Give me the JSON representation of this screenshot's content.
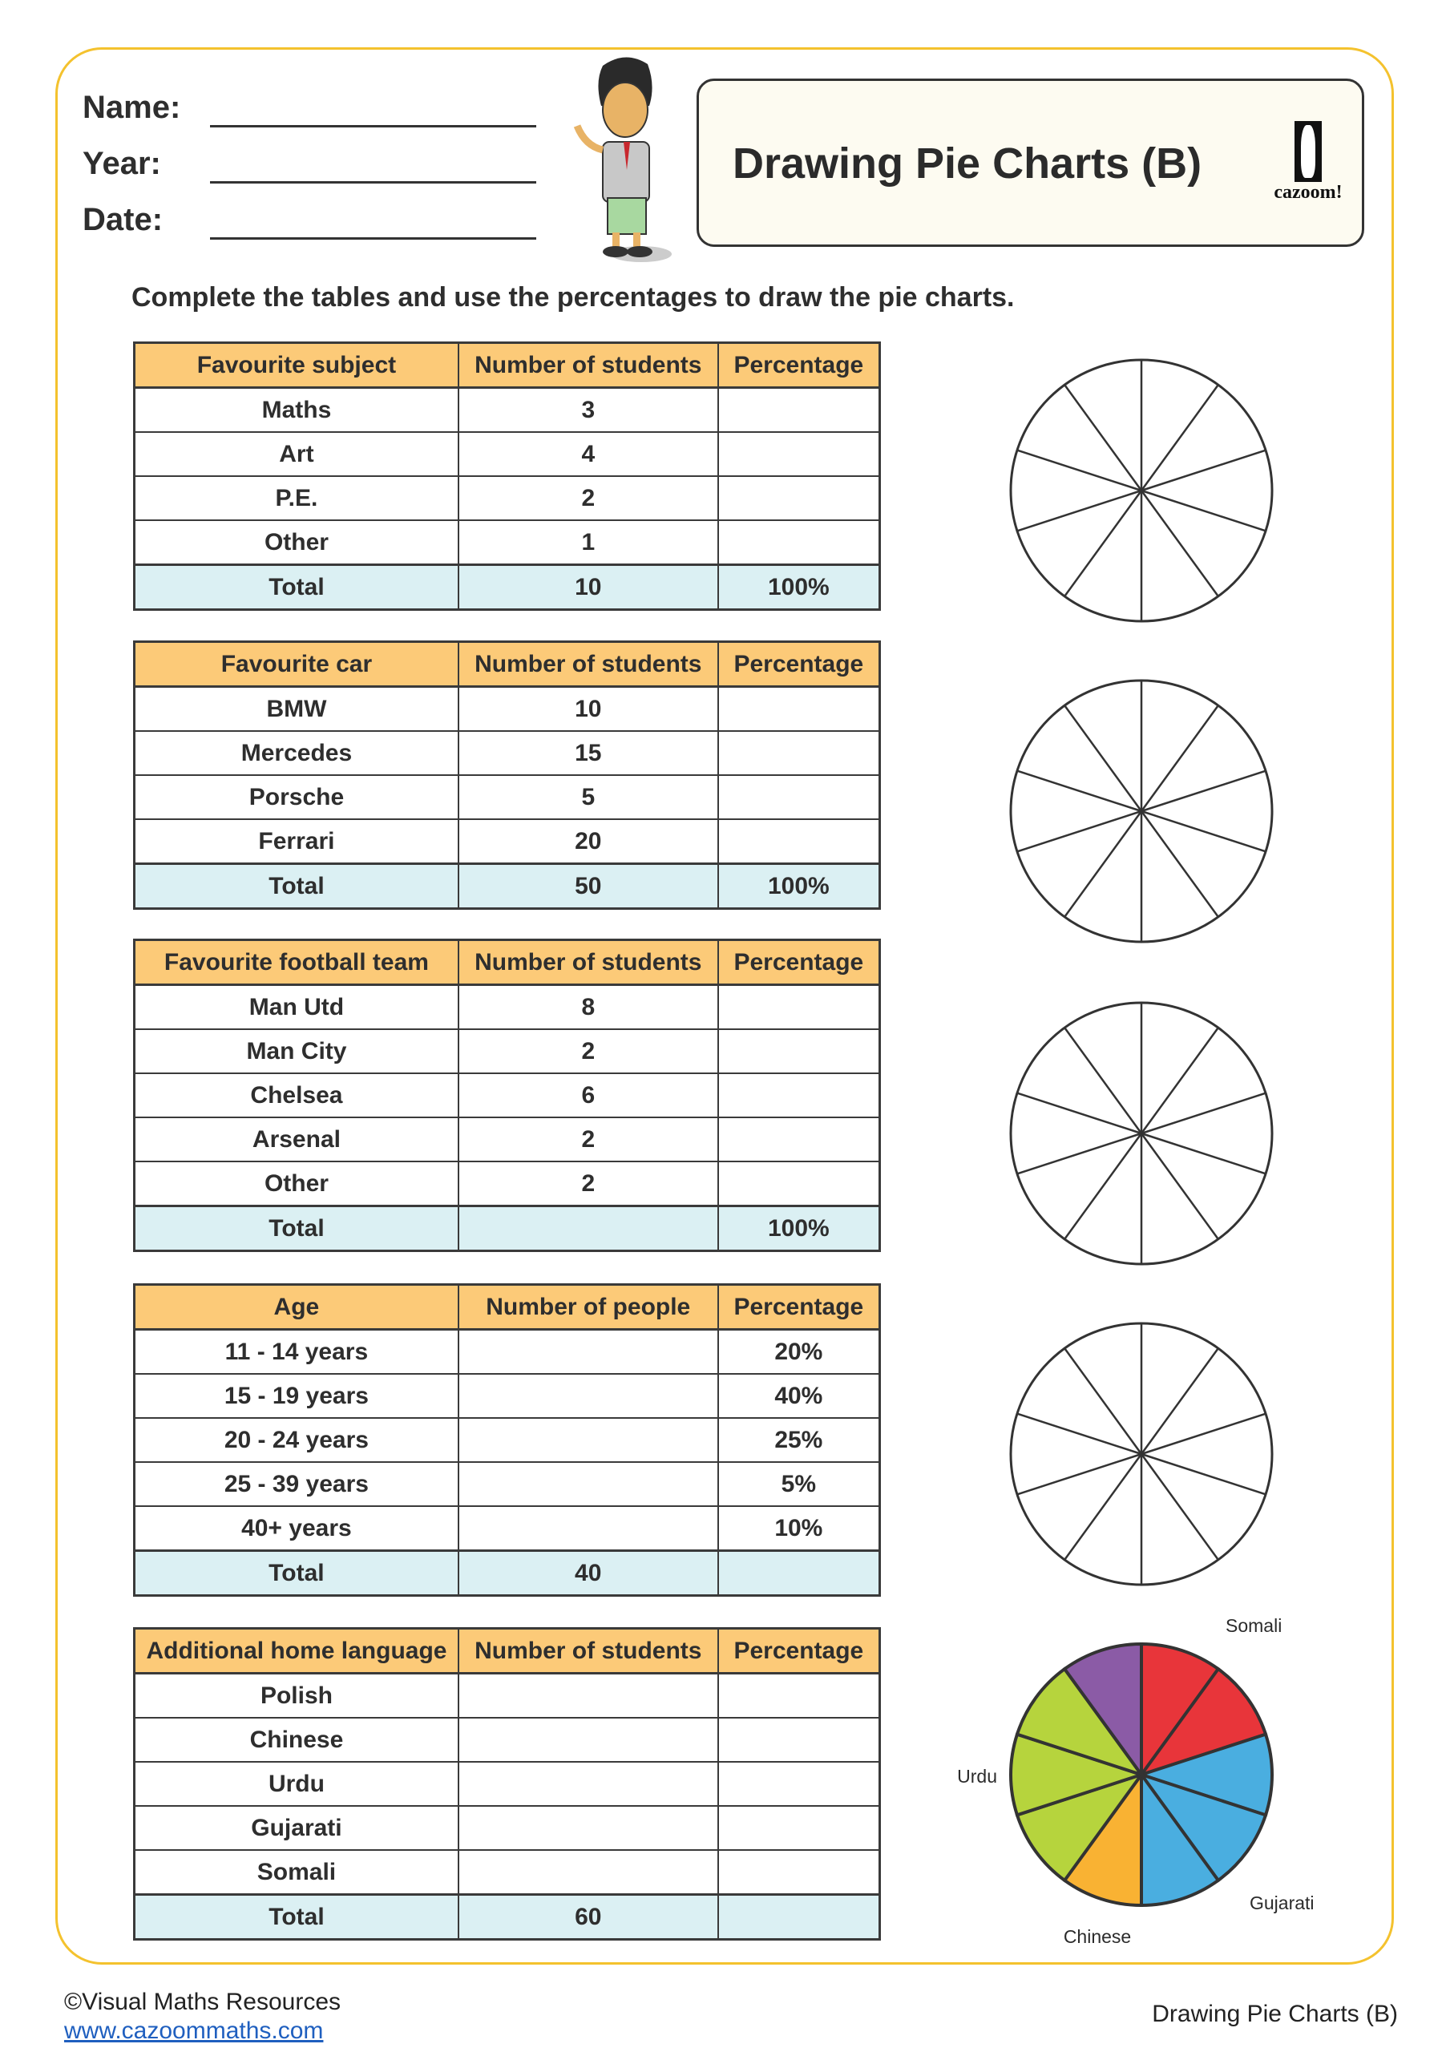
{
  "header": {
    "name_label": "Name:",
    "year_label": "Year:",
    "date_label": "Date:",
    "title": "Drawing Pie Charts (B)",
    "logo_text": "cazoom!"
  },
  "instruction": "Complete the tables and use the percentages to draw the pie charts.",
  "tables": [
    {
      "headers": [
        "Favourite subject",
        "Number of students",
        "Percentage"
      ],
      "rows": [
        [
          "Maths",
          "3",
          ""
        ],
        [
          "Art",
          "4",
          ""
        ],
        [
          "P.E.",
          "2",
          ""
        ],
        [
          "Other",
          "1",
          ""
        ]
      ],
      "total": [
        "Total",
        "10",
        "100%"
      ]
    },
    {
      "headers": [
        "Favourite car",
        "Number of students",
        "Percentage"
      ],
      "rows": [
        [
          "BMW",
          "10",
          ""
        ],
        [
          "Mercedes",
          "15",
          ""
        ],
        [
          "Porsche",
          "5",
          ""
        ],
        [
          "Ferrari",
          "20",
          ""
        ]
      ],
      "total": [
        "Total",
        "50",
        "100%"
      ]
    },
    {
      "headers": [
        "Favourite football team",
        "Number of students",
        "Percentage"
      ],
      "rows": [
        [
          "Man Utd",
          "8",
          ""
        ],
        [
          "Man City",
          "2",
          ""
        ],
        [
          "Chelsea",
          "6",
          ""
        ],
        [
          "Arsenal",
          "2",
          ""
        ],
        [
          "Other",
          "2",
          ""
        ]
      ],
      "total": [
        "Total",
        "",
        "100%"
      ]
    },
    {
      "headers": [
        "Age",
        "Number of people",
        "Percentage"
      ],
      "rows": [
        [
          "11 - 14 years",
          "",
          "20%"
        ],
        [
          "15 - 19 years",
          "",
          "40%"
        ],
        [
          "20 - 24 years",
          "",
          "25%"
        ],
        [
          "25 - 39 years",
          "",
          "5%"
        ],
        [
          "40+ years",
          "",
          "10%"
        ]
      ],
      "total": [
        "Total",
        "40",
        ""
      ]
    },
    {
      "headers": [
        "Additional home language",
        "Number of students",
        "Percentage"
      ],
      "rows": [
        [
          "Polish",
          "",
          ""
        ],
        [
          "Chinese",
          "",
          ""
        ],
        [
          "Urdu",
          "",
          ""
        ],
        [
          "Gujarati",
          "",
          ""
        ],
        [
          "Somali",
          "",
          ""
        ]
      ],
      "total": [
        "Total",
        "60",
        ""
      ]
    }
  ],
  "blank_pie_segments": 10,
  "chart_data": {
    "type": "pie",
    "title": "",
    "total_segments": 10,
    "start": "top",
    "direction": "clockwise",
    "categories": [
      "Somali",
      "Gujarati",
      "Chinese",
      "Urdu",
      "Polish"
    ],
    "segments": [
      2,
      3,
      1,
      3,
      1
    ],
    "colors": [
      "#e8353a",
      "#4aaee0",
      "#f9b233",
      "#b6d43d",
      "#8b5ba6"
    ]
  },
  "footer": {
    "copyright": "©Visual Maths Resources",
    "url": "www.cazoommaths.com",
    "right_text": "Drawing Pie Charts (B)"
  },
  "colors": {
    "frame": "#f4c22e",
    "table_header": "#fcca78",
    "total_row": "#dbf0f3"
  }
}
